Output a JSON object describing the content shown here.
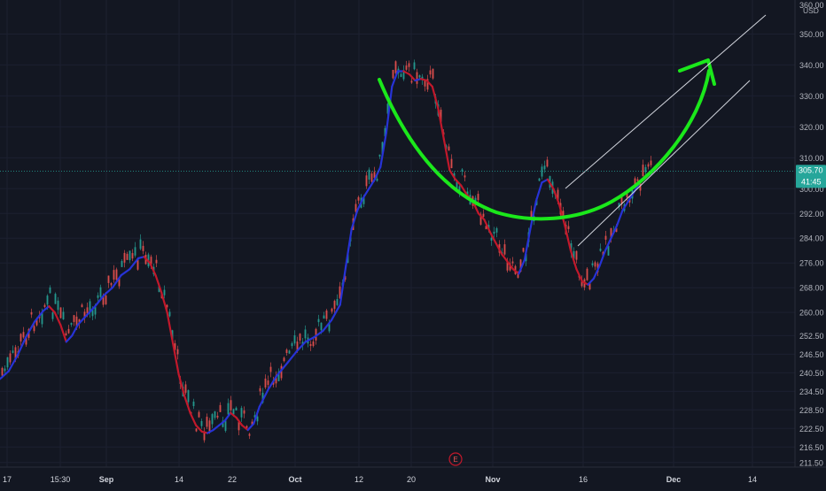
{
  "chart_data": {
    "type": "candlestick",
    "currency": "USD",
    "price_axis": {
      "max_label": "360.00",
      "ticks": [
        "350.00",
        "340.00",
        "330.00",
        "320.00",
        "310.00",
        "300.00",
        "292.00",
        "284.00",
        "276.00",
        "268.00",
        "260.00",
        "252.50",
        "246.50",
        "240.50",
        "234.50",
        "228.50",
        "222.50",
        "216.50",
        "211.50"
      ],
      "range": [
        210,
        361
      ]
    },
    "time_axis": {
      "labels": [
        "17",
        "15:30",
        "Sep",
        "14",
        "22",
        "Oct",
        "12",
        "20",
        "Nov",
        "16",
        "Dec",
        "14"
      ],
      "bold": [
        "Sep",
        "Oct",
        "Nov",
        "Dec"
      ]
    },
    "last_price": {
      "value": "305.70",
      "countdown": "41:45",
      "color": "#26a69a"
    },
    "event_marker": "E",
    "moving_average": {
      "up_color": "#2733d6",
      "down_color": "#c2182b",
      "points": [
        [
          0,
          238.5
        ],
        [
          0.03,
          241
        ],
        [
          0.06,
          246
        ],
        [
          0.09,
          252
        ],
        [
          0.12,
          257
        ],
        [
          0.15,
          260.5
        ],
        [
          0.17,
          262
        ],
        [
          0.19,
          260
        ],
        [
          0.21,
          256
        ],
        [
          0.23,
          250.5
        ],
        [
          0.25,
          252.5
        ],
        [
          0.27,
          256
        ],
        [
          0.3,
          259
        ],
        [
          0.33,
          262
        ],
        [
          0.36,
          265.5
        ],
        [
          0.39,
          268
        ],
        [
          0.42,
          272
        ],
        [
          0.45,
          274
        ],
        [
          0.48,
          277.5
        ],
        [
          0.5,
          278
        ],
        [
          0.52,
          276
        ],
        [
          0.54,
          272
        ],
        [
          0.56,
          266.5
        ],
        [
          0.58,
          260
        ],
        [
          0.6,
          250
        ],
        [
          0.62,
          240
        ],
        [
          0.64,
          233
        ],
        [
          0.66,
          227.5
        ],
        [
          0.68,
          223.5
        ],
        [
          0.7,
          221.5
        ],
        [
          0.72,
          221
        ],
        [
          0.74,
          222
        ],
        [
          0.76,
          223.5
        ],
        [
          0.78,
          225
        ],
        [
          0.8,
          227.5
        ],
        [
          0.82,
          226
        ],
        [
          0.84,
          223.5
        ],
        [
          0.86,
          222
        ],
        [
          0.88,
          224
        ],
        [
          0.9,
          229.5
        ],
        [
          0.93,
          235
        ],
        [
          0.96,
          239.5
        ],
        [
          1.0,
          244
        ],
        [
          1.03,
          247.5
        ],
        [
          1.06,
          250.5
        ],
        [
          1.09,
          252
        ],
        [
          1.12,
          254
        ],
        [
          1.15,
          257.5
        ],
        [
          1.18,
          262.5
        ],
        [
          1.2,
          275
        ],
        [
          1.22,
          287
        ],
        [
          1.24,
          293
        ],
        [
          1.26,
          297
        ],
        [
          1.28,
          300
        ],
        [
          1.3,
          303
        ],
        [
          1.32,
          307
        ],
        [
          1.34,
          318
        ],
        [
          1.36,
          333
        ],
        [
          1.38,
          338
        ],
        [
          1.4,
          338
        ],
        [
          1.42,
          337
        ],
        [
          1.44,
          335
        ],
        [
          1.46,
          335.5
        ],
        [
          1.48,
          335
        ],
        [
          1.5,
          333
        ],
        [
          1.52,
          326
        ],
        [
          1.54,
          316
        ],
        [
          1.56,
          306
        ],
        [
          1.58,
          303
        ],
        [
          1.6,
          301
        ],
        [
          1.62,
          298
        ],
        [
          1.64,
          296
        ],
        [
          1.66,
          292
        ],
        [
          1.68,
          290
        ],
        [
          1.7,
          286
        ],
        [
          1.72,
          282.5
        ],
        [
          1.74,
          279
        ],
        [
          1.76,
          276.5
        ],
        [
          1.78,
          274
        ],
        [
          1.8,
          272.5
        ],
        [
          1.82,
          277
        ],
        [
          1.84,
          287
        ],
        [
          1.86,
          296
        ],
        [
          1.88,
          302
        ],
        [
          1.9,
          303
        ],
        [
          1.92,
          300
        ],
        [
          1.94,
          295
        ],
        [
          1.96,
          288
        ],
        [
          1.98,
          280
        ],
        [
          2.0,
          274
        ],
        [
          2.02,
          270
        ],
        [
          2.04,
          269
        ],
        [
          2.06,
          271
        ],
        [
          2.08,
          275
        ],
        [
          2.1,
          280
        ],
        [
          2.12,
          284
        ],
        [
          2.14,
          288
        ],
        [
          2.16,
          293
        ],
        [
          2.18,
          296
        ],
        [
          2.2,
          299
        ],
        [
          2.22,
          302
        ],
        [
          2.24,
          304
        ],
        [
          2.26,
          305
        ]
      ]
    },
    "annotations": [
      {
        "type": "arc",
        "color": "#1be81b",
        "desc": "cup shape"
      },
      {
        "type": "arrow",
        "color": "#1be81b"
      },
      {
        "type": "channel",
        "color": "#d1d4dc"
      }
    ]
  }
}
